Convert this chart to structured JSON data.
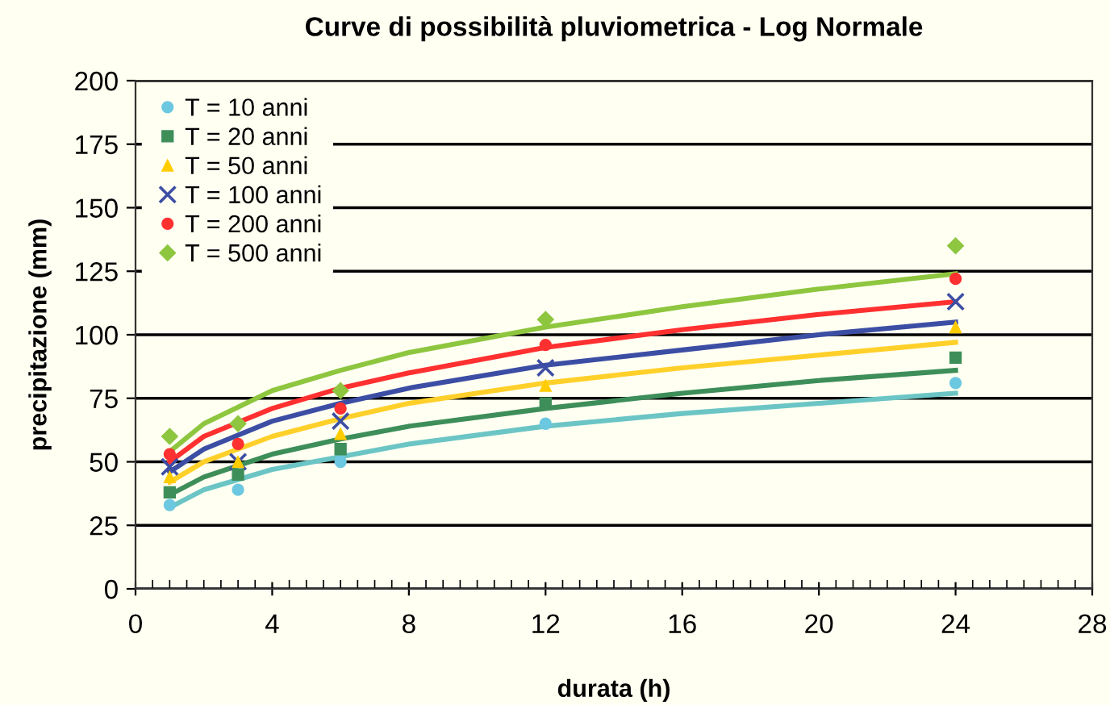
{
  "chart_data": {
    "type": "scatter",
    "title": "Curve di possibilità pluviometrica - Log Normale",
    "xlabel": "durata (h)",
    "ylabel": "precipitazione (mm)",
    "xlim": [
      0,
      28
    ],
    "xticks": [
      0,
      4,
      8,
      12,
      16,
      20,
      24,
      28
    ],
    "ylim": [
      0,
      200
    ],
    "yticks": [
      0,
      25,
      50,
      75,
      100,
      125,
      150,
      175,
      200
    ],
    "grid": "y",
    "legend": "top left",
    "series": [
      {
        "name": "T = 10 anni",
        "marker": "circle",
        "color": "#6cc8e0",
        "x": [
          1,
          3,
          6,
          12,
          24
        ],
        "values": [
          33,
          39,
          50,
          65,
          81
        ]
      },
      {
        "name": "T = 20 anni",
        "marker": "square",
        "color": "#3e8e5a",
        "x": [
          1,
          3,
          6,
          12,
          24
        ],
        "values": [
          38,
          45,
          55,
          73,
          91
        ]
      },
      {
        "name": "T = 50 anni",
        "marker": "triangle",
        "color": "#ffcc00",
        "x": [
          1,
          3,
          6,
          12,
          24
        ],
        "values": [
          44,
          50,
          61,
          80,
          103
        ]
      },
      {
        "name": "T = 100 anni",
        "marker": "cross",
        "color": "#3c4ea4",
        "x": [
          1,
          3,
          6,
          12,
          24
        ],
        "values": [
          48,
          50,
          66,
          87,
          113
        ]
      },
      {
        "name": "T = 200 anni",
        "marker": "circle",
        "color": "#ff3030",
        "x": [
          1,
          3,
          6,
          12,
          24
        ],
        "values": [
          53,
          57,
          71,
          96,
          122
        ]
      },
      {
        "name": "T = 500 anni",
        "marker": "diamond",
        "color": "#8ec63f",
        "x": [
          1,
          3,
          6,
          12,
          24
        ],
        "values": [
          60,
          65,
          78,
          106,
          135
        ]
      },
      {
        "type": "line",
        "marker": "none",
        "color": "#6cc5c5",
        "x": [
          1,
          2,
          4,
          6,
          8,
          12,
          16,
          20,
          24
        ],
        "values": [
          32,
          39,
          47,
          52,
          57,
          64,
          69,
          73,
          77
        ]
      },
      {
        "type": "line",
        "marker": "none",
        "color": "#3e8e5a",
        "x": [
          1,
          2,
          4,
          6,
          8,
          12,
          16,
          20,
          24
        ],
        "values": [
          37,
          44,
          53,
          59,
          64,
          71,
          77,
          82,
          86
        ]
      },
      {
        "type": "line",
        "marker": "none",
        "color": "#ffd02a",
        "x": [
          1,
          2,
          4,
          6,
          8,
          12,
          16,
          20,
          24
        ],
        "values": [
          42,
          50,
          60,
          67,
          73,
          81,
          87,
          92,
          97
        ]
      },
      {
        "type": "line",
        "marker": "none",
        "color": "#3c4ea4",
        "x": [
          1,
          2,
          4,
          6,
          8,
          12,
          16,
          20,
          24
        ],
        "values": [
          46,
          55,
          66,
          73,
          79,
          88,
          94,
          100,
          105
        ]
      },
      {
        "type": "line",
        "marker": "none",
        "color": "#ff3030",
        "x": [
          1,
          2,
          4,
          6,
          8,
          12,
          16,
          20,
          24
        ],
        "values": [
          50,
          60,
          71,
          79,
          85,
          95,
          102,
          108,
          113
        ]
      },
      {
        "type": "line",
        "marker": "none",
        "color": "#8ec63f",
        "x": [
          1,
          2,
          4,
          6,
          8,
          12,
          16,
          20,
          24
        ],
        "values": [
          54,
          65,
          78,
          86,
          93,
          103,
          111,
          118,
          124
        ]
      }
    ]
  }
}
